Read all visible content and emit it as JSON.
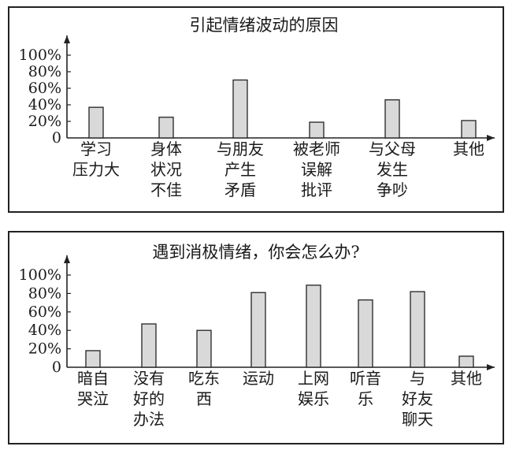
{
  "chart_data": [
    {
      "type": "bar",
      "title": "引起情绪波动的原因",
      "yticks": [
        "0",
        "20%",
        "40%",
        "60%",
        "80%",
        "100%"
      ],
      "ylim": [
        0,
        100
      ],
      "categories": [
        [
          "学习",
          "压力大"
        ],
        [
          "身体",
          "状况",
          "不佳"
        ],
        [
          "与朋友",
          "产生",
          "矛盾"
        ],
        [
          "被老师",
          "误解",
          "批评"
        ],
        [
          "与父母",
          "发生",
          "争吵"
        ],
        [
          "其他"
        ]
      ],
      "values": [
        37,
        25,
        70,
        19,
        46,
        21
      ]
    },
    {
      "type": "bar",
      "title": "遇到消极情绪，你会怎么办?",
      "yticks": [
        "0",
        "20%",
        "40%",
        "60%",
        "80%",
        "100%"
      ],
      "ylim": [
        0,
        100
      ],
      "categories": [
        [
          "暗自",
          "哭泣"
        ],
        [
          "没有",
          "好的",
          "办法"
        ],
        [
          "吃东",
          "西"
        ],
        [
          "运动"
        ],
        [
          "上网",
          "娱乐"
        ],
        [
          "听音",
          "乐"
        ],
        [
          "与",
          "好友",
          "聊天"
        ],
        [
          "其他"
        ]
      ],
      "values": [
        18,
        47,
        40,
        81,
        89,
        73,
        82,
        12
      ]
    }
  ]
}
